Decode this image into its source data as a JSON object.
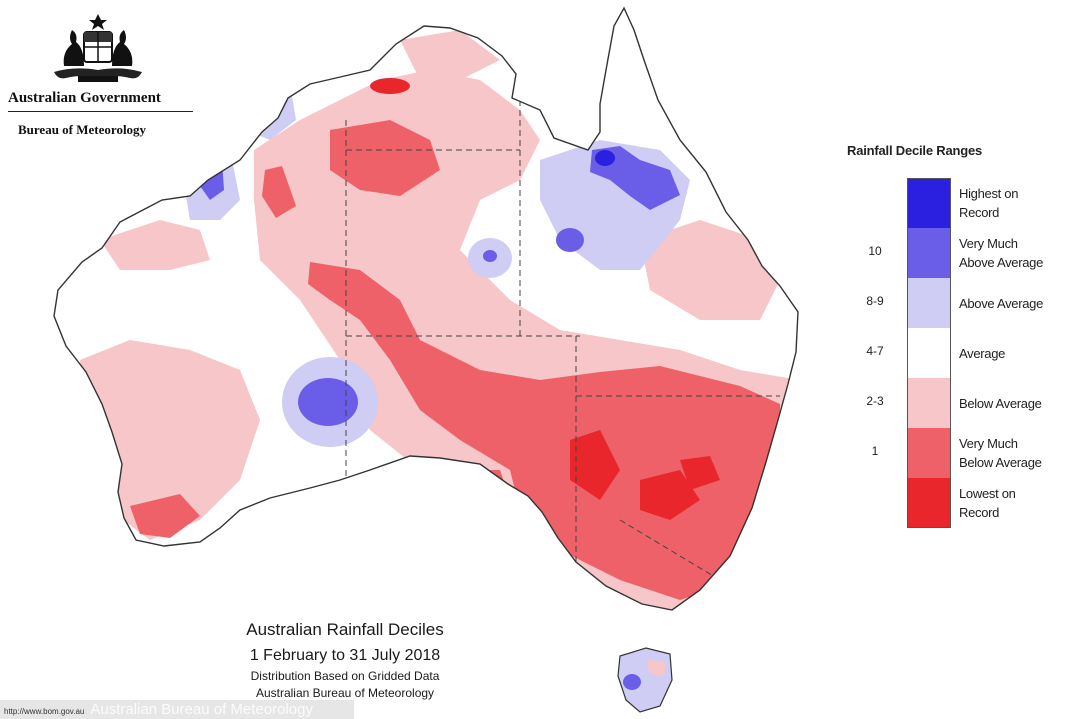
{
  "header": {
    "government": "Australian Government",
    "bureau": "Bureau of Meteorology"
  },
  "legend": {
    "title": "Rainfall Decile Ranges",
    "items": [
      {
        "code": "",
        "label_line1": "Highest on",
        "label_line2": "Record",
        "color": "#2b1fe0"
      },
      {
        "code": "10",
        "label_line1": "Very Much",
        "label_line2": "Above Average",
        "color": "#6a5de8"
      },
      {
        "code": "8-9",
        "label_line1": "Above Average",
        "label_line2": "",
        "color": "#cfcdf4"
      },
      {
        "code": "4-7",
        "label_line1": "Average",
        "label_line2": "",
        "color": "#ffffff"
      },
      {
        "code": "2-3",
        "label_line1": "Below Average",
        "label_line2": "",
        "color": "#f6c6c8"
      },
      {
        "code": "1",
        "label_line1": "Very Much",
        "label_line2": "Below Average",
        "color": "#ee6168"
      },
      {
        "code": "",
        "label_line1": "Lowest on",
        "label_line2": "Record",
        "color": "#e8262c"
      }
    ]
  },
  "caption": {
    "title": "Australian Rainfall Deciles",
    "dates": "1 February to 31 July 2018",
    "line1": "Distribution Based on Gridded Data",
    "line2": "Australian Bureau of Meteorology"
  },
  "watermark": {
    "small": "http://www.bom.gov.au",
    "text": "Australian Bureau of Meteorology"
  }
}
